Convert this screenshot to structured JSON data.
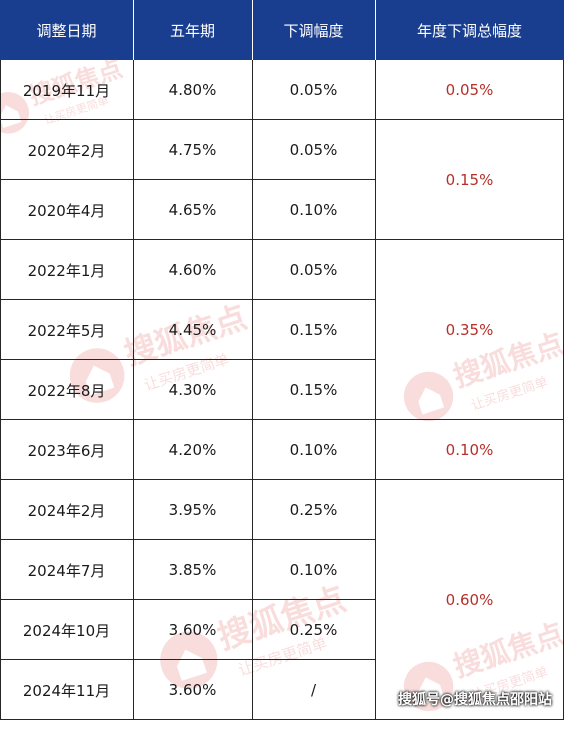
{
  "header": [
    "调整日期",
    "五年期",
    "下调幅度",
    "年度下调总幅度"
  ],
  "rows": [
    {
      "date": "2019年11月",
      "rate": "4.80%",
      "cut": "0.05%"
    },
    {
      "date": "2020年2月",
      "rate": "4.75%",
      "cut": "0.05%"
    },
    {
      "date": "2020年4月",
      "rate": "4.65%",
      "cut": "0.10%"
    },
    {
      "date": "2022年1月",
      "rate": "4.60%",
      "cut": "0.05%"
    },
    {
      "date": "2022年5月",
      "rate": "4.45%",
      "cut": "0.15%"
    },
    {
      "date": "2022年8月",
      "rate": "4.30%",
      "cut": "0.15%"
    },
    {
      "date": "2023年6月",
      "rate": "4.20%",
      "cut": "0.10%"
    },
    {
      "date": "2024年2月",
      "rate": "3.95%",
      "cut": "0.25%"
    },
    {
      "date": "2024年7月",
      "rate": "3.85%",
      "cut": "0.10%"
    },
    {
      "date": "2024年10月",
      "rate": "3.60%",
      "cut": "0.25%"
    },
    {
      "date": "2024年11月",
      "rate": "3.60%",
      "cut": "/"
    }
  ],
  "annual_totals": [
    {
      "value": "0.05%",
      "row_start": 0,
      "row_count": 1
    },
    {
      "value": "0.15%",
      "row_start": 1,
      "row_count": 2
    },
    {
      "value": "0.35%",
      "row_start": 3,
      "row_count": 3
    },
    {
      "value": "0.10%",
      "row_start": 6,
      "row_count": 1
    },
    {
      "value": "0.60%",
      "row_start": 7,
      "row_count": 4
    }
  ],
  "watermark": {
    "brand": "搜狐焦点",
    "slogan": "让买房更简单",
    "color": "#d9332b"
  },
  "credit": "搜狐号@搜狐焦点邵阳站"
}
